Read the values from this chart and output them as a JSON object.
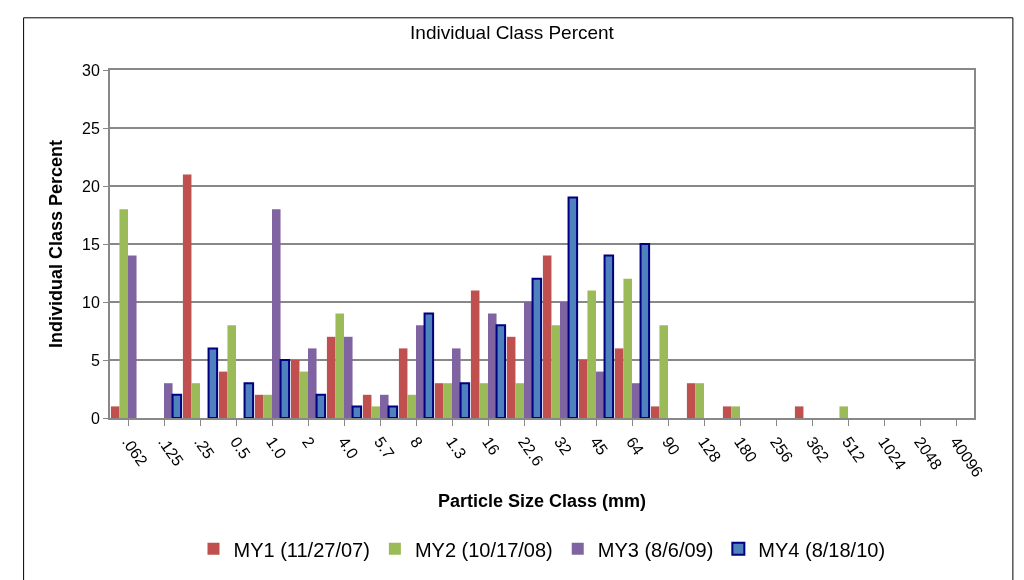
{
  "chart_data": {
    "type": "bar",
    "title": "Individual Class Percent",
    "xlabel": "Particle Size Class (mm)",
    "ylabel": "Individual Class Percent",
    "categories": [
      ".062",
      ".125",
      ".25",
      "0.5",
      "1.0",
      "2",
      "4.0",
      "5.7",
      "8",
      "1.3",
      "16",
      "22.6",
      "32",
      "45",
      "64",
      "90",
      "128",
      "180",
      "256",
      "362",
      "512",
      "1024",
      "2048",
      "40096"
    ],
    "series": [
      {
        "name": "MY1 (11/27/07)",
        "color": "#c0504d",
        "values": [
          1,
          null,
          21,
          4,
          2,
          5,
          7,
          2,
          6,
          3,
          11,
          7,
          14,
          5,
          6,
          1,
          3,
          1,
          null,
          1,
          null,
          null,
          null,
          null
        ]
      },
      {
        "name": "MY2 (10/17/08)",
        "color": "#9bbb59",
        "values": [
          18,
          null,
          3,
          8,
          2,
          4,
          9,
          1,
          2,
          3,
          3,
          3,
          8,
          11,
          12,
          8,
          3,
          1,
          null,
          null,
          1,
          null,
          null,
          null
        ]
      },
      {
        "name": "MY3 (8/6/09)",
        "color": "#8064a2",
        "values": [
          14,
          3,
          null,
          null,
          18,
          6,
          7,
          2,
          8,
          6,
          9,
          10,
          10,
          4,
          3,
          null,
          null,
          null,
          null,
          null,
          null,
          null,
          null,
          null
        ]
      },
      {
        "name": "MY4 (8/18/10)",
        "color": "#4f81bd",
        "values": [
          null,
          2,
          6,
          3,
          5,
          2,
          1,
          1,
          9,
          3,
          8,
          12,
          19,
          14,
          15,
          null,
          null,
          null,
          null,
          null,
          null,
          null,
          null,
          null
        ]
      }
    ],
    "ylim": [
      0,
      30
    ],
    "yticks": [
      0,
      5,
      10,
      15,
      20,
      25,
      30
    ],
    "grid": "y",
    "legend": "bottom"
  }
}
